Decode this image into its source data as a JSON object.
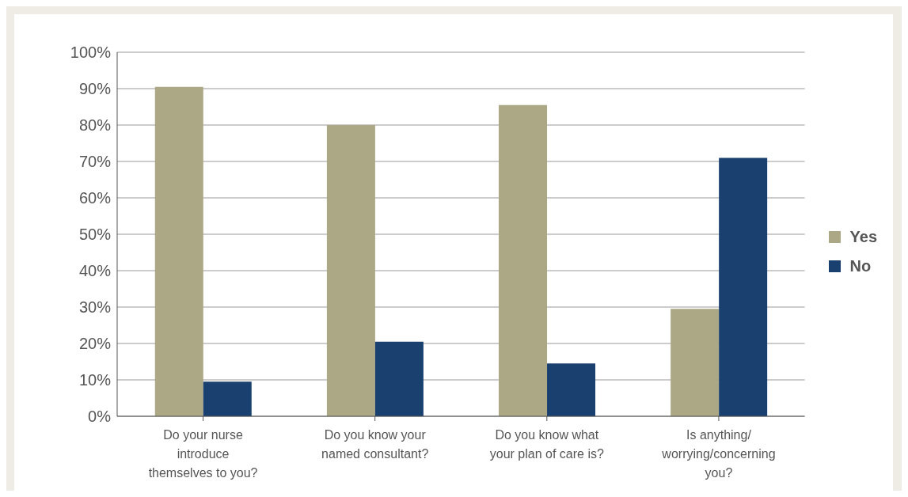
{
  "chart_data": {
    "type": "bar",
    "categories": [
      "Do your nurse introduce themselves to you?",
      "Do you know your named consultant?",
      "Do you know what your plan of care is?",
      "Is anything/ worrying/concerning you?"
    ],
    "series": [
      {
        "name": "Yes",
        "color": "#aca784",
        "values": [
          90.5,
          80,
          85.5,
          29.5
        ]
      },
      {
        "name": "No",
        "color": "#1a406f",
        "values": [
          9.5,
          20.5,
          14.5,
          71
        ]
      }
    ],
    "ylim": [
      0,
      100
    ],
    "yticks": [
      {
        "value": 0,
        "label": "0%"
      },
      {
        "value": 10,
        "label": "10%"
      },
      {
        "value": 20,
        "label": "20%"
      },
      {
        "value": 30,
        "label": "30%"
      },
      {
        "value": 40,
        "label": "40%"
      },
      {
        "value": 50,
        "label": "50%"
      },
      {
        "value": 60,
        "label": "60%"
      },
      {
        "value": 70,
        "label": "70%"
      },
      {
        "value": 80,
        "label": "80%"
      },
      {
        "value": 90,
        "label": "90%"
      },
      {
        "value": 100,
        "label": "100%"
      }
    ],
    "grid": "y",
    "legend": "right"
  }
}
